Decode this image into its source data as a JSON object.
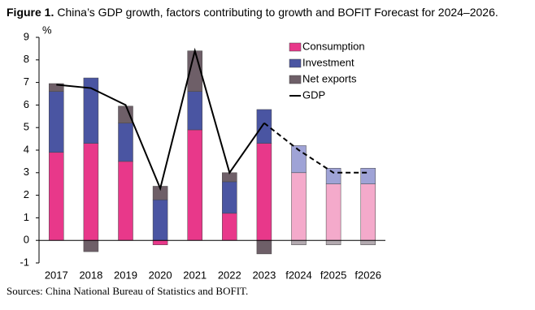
{
  "chart_data": {
    "type": "stacked-bar-line",
    "title_label": "Figure 1.",
    "title": "China’s GDP growth, factors contributing to growth and BOFIT Forecast for 2024–2026.",
    "y_label": "%",
    "source": "Sources: China National Bureau of Statistics and BOFIT.",
    "categories": [
      "2017",
      "2018",
      "2019",
      "2020",
      "2021",
      "2022",
      "2023",
      "f2024",
      "f2025",
      "f2026"
    ],
    "forecast_from_index": 7,
    "series": [
      {
        "name": "Consumption",
        "color": "#e8388a",
        "forecast_color": "#f4aacb",
        "values": [
          3.9,
          4.3,
          3.5,
          -0.2,
          4.9,
          1.2,
          4.3,
          3.0,
          2.5,
          2.5
        ]
      },
      {
        "name": "Investment",
        "color": "#4a55a2",
        "forecast_color": "#9fa3d6",
        "values": [
          2.7,
          2.9,
          1.7,
          1.8,
          1.7,
          1.4,
          1.5,
          1.2,
          0.7,
          0.7
        ]
      },
      {
        "name": "Net exports",
        "color": "#6e5f68",
        "forecast_color": "#b3aab0",
        "values": [
          0.35,
          -0.5,
          0.75,
          0.6,
          1.8,
          0.4,
          -0.6,
          -0.2,
          -0.2,
          -0.2
        ]
      }
    ],
    "line": {
      "name": "GDP",
      "color": "#000000",
      "values": [
        6.9,
        6.75,
        6.0,
        2.3,
        8.4,
        3.0,
        5.2,
        4.0,
        3.0,
        3.0
      ]
    },
    "ylim": [
      -1,
      9
    ],
    "yticks": [
      -1,
      0,
      1,
      2,
      3,
      4,
      5,
      6,
      7,
      8,
      9
    ]
  }
}
